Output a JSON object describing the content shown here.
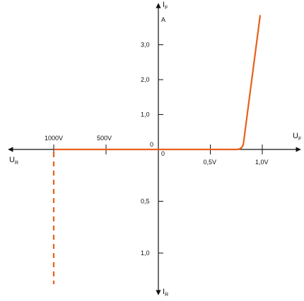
{
  "chart_data": {
    "type": "line",
    "axes": {
      "x_positive_label": "U",
      "x_positive_sub": "F",
      "x_negative_label": "U",
      "x_negative_sub": "R",
      "y_positive_label": "I",
      "y_positive_sub": "F",
      "y_positive_unit": "A",
      "y_negative_label": "I",
      "y_negative_sub": "R",
      "origin_labels": [
        "0",
        "0"
      ]
    },
    "x_forward_ticks": [
      {
        "value": 0.5,
        "label": "0,5V"
      },
      {
        "value": 1.0,
        "label": "1,0V"
      }
    ],
    "x_reverse_ticks": [
      {
        "value": 500,
        "label": "500V"
      },
      {
        "value": 1000,
        "label": "1000V"
      }
    ],
    "y_forward_ticks": [
      {
        "value": 1.0,
        "label": "1,0"
      },
      {
        "value": 2.0,
        "label": "2,0"
      },
      {
        "value": 3.0,
        "label": "3,0"
      }
    ],
    "y_reverse_ticks": [
      {
        "value": 0.5,
        "label": "0,5"
      },
      {
        "value": 1.0,
        "label": "1,0"
      }
    ],
    "forward_curve": {
      "unit_x": "V",
      "unit_y": "A",
      "points": [
        [
          0,
          0
        ],
        [
          0.75,
          0.0
        ],
        [
          0.8,
          0.05
        ],
        [
          0.82,
          0.2
        ],
        [
          0.98,
          3.85
        ]
      ]
    },
    "reverse_curve": {
      "unit_x": "V",
      "points": [
        [
          0,
          0
        ],
        [
          1000,
          0
        ]
      ]
    },
    "breakdown": {
      "voltage": 1000,
      "style": "dashed",
      "extends_to_current": 1.3
    },
    "color": "#e8601c"
  }
}
